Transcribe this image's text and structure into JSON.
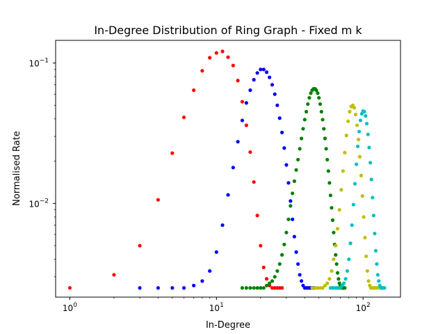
{
  "chart_data": {
    "type": "scatter",
    "title": "In-Degree Distribution of Ring Graph - Fixed m k",
    "xlabel": "In-Degree",
    "ylabel": "Normalised Rate",
    "xscale": "log",
    "yscale": "log",
    "xlim": [
      0.8,
      180
    ],
    "ylim": [
      0.00215,
      0.145
    ],
    "x_ticks": [
      {
        "base": "10",
        "exp": "0",
        "value": 1
      },
      {
        "base": "10",
        "exp": "1",
        "value": 10
      },
      {
        "base": "10",
        "exp": "2",
        "value": 100
      }
    ],
    "y_ticks": [
      {
        "base": "10",
        "exp": "−2",
        "value": 0.01
      },
      {
        "base": "10",
        "exp": "−1",
        "value": 0.1
      }
    ],
    "grid": false,
    "series": [
      {
        "color": "#ff0000",
        "points": [
          [
            1,
            0.0025
          ],
          [
            2,
            0.0031
          ],
          [
            3,
            0.005
          ],
          [
            4,
            0.0106
          ],
          [
            5,
            0.0228
          ],
          [
            6,
            0.041
          ],
          [
            7,
            0.064
          ],
          [
            8,
            0.088
          ],
          [
            9,
            0.109
          ],
          [
            10,
            0.118
          ],
          [
            11,
            0.121
          ],
          [
            12,
            0.11
          ],
          [
            13,
            0.096
          ],
          [
            14,
            0.075
          ],
          [
            15,
            0.053
          ],
          [
            16,
            0.036
          ],
          [
            17,
            0.0232
          ],
          [
            18,
            0.0142
          ],
          [
            19,
            0.0082
          ],
          [
            20,
            0.005
          ],
          [
            21,
            0.0035
          ],
          [
            22,
            0.0029
          ],
          [
            23,
            0.0026
          ],
          [
            24,
            0.0025
          ],
          [
            25,
            0.0025
          ],
          [
            26,
            0.0025
          ],
          [
            27,
            0.0025
          ],
          [
            28,
            0.0025
          ]
        ]
      },
      {
        "color": "#0000ff",
        "points": [
          [
            3,
            0.0025
          ],
          [
            4,
            0.0025
          ],
          [
            5,
            0.0025
          ],
          [
            6,
            0.0025
          ],
          [
            7,
            0.0026
          ],
          [
            8,
            0.0028
          ],
          [
            9,
            0.0033
          ],
          [
            10,
            0.0045
          ],
          [
            11,
            0.007
          ],
          [
            12,
            0.0115
          ],
          [
            13,
            0.018
          ],
          [
            14,
            0.0275
          ],
          [
            15,
            0.039
          ],
          [
            16,
            0.052
          ],
          [
            17,
            0.064
          ],
          [
            18,
            0.076
          ],
          [
            19,
            0.085
          ],
          [
            20,
            0.09
          ],
          [
            21,
            0.09
          ],
          [
            22,
            0.086
          ],
          [
            23,
            0.079
          ],
          [
            24,
            0.07
          ],
          [
            25,
            0.06
          ],
          [
            26,
            0.05
          ],
          [
            27,
            0.0405
          ],
          [
            28,
            0.032
          ],
          [
            29,
            0.0248
          ],
          [
            30,
            0.0188
          ],
          [
            31,
            0.014
          ],
          [
            32,
            0.0104
          ],
          [
            33,
            0.0077
          ],
          [
            34,
            0.0058
          ],
          [
            35,
            0.0045
          ],
          [
            36,
            0.0037
          ],
          [
            37,
            0.0031
          ],
          [
            38,
            0.0028
          ],
          [
            39,
            0.0026
          ],
          [
            40,
            0.0025
          ],
          [
            41,
            0.0025
          ],
          [
            42,
            0.0025
          ],
          [
            43,
            0.0025
          ],
          [
            44,
            0.0025
          ],
          [
            45,
            0.0025
          ],
          [
            46,
            0.0025
          ]
        ]
      },
      {
        "color": "#008000",
        "points": [
          [
            15,
            0.0025
          ],
          [
            16,
            0.0025
          ],
          [
            17,
            0.0025
          ],
          [
            18,
            0.0025
          ],
          [
            19,
            0.0025
          ],
          [
            20,
            0.0025
          ],
          [
            21,
            0.0025
          ],
          [
            22,
            0.0026
          ],
          [
            23,
            0.0027
          ],
          [
            24,
            0.0028
          ],
          [
            25,
            0.003
          ],
          [
            26,
            0.0033
          ],
          [
            27,
            0.0037
          ],
          [
            28,
            0.0043
          ],
          [
            29,
            0.0051
          ],
          [
            30,
            0.0062
          ],
          [
            31,
            0.0077
          ],
          [
            32,
            0.0096
          ],
          [
            33,
            0.0118
          ],
          [
            34,
            0.0144
          ],
          [
            35,
            0.0173
          ],
          [
            36,
            0.0205
          ],
          [
            37,
            0.0245
          ],
          [
            38,
            0.029
          ],
          [
            39,
            0.034
          ],
          [
            40,
            0.0395
          ],
          [
            41,
            0.045
          ],
          [
            42,
            0.051
          ],
          [
            43,
            0.0565
          ],
          [
            44,
            0.061
          ],
          [
            45,
            0.064
          ],
          [
            46,
            0.0655
          ],
          [
            47,
            0.0655
          ],
          [
            48,
            0.064
          ],
          [
            49,
            0.061
          ],
          [
            50,
            0.0565
          ],
          [
            51,
            0.051
          ],
          [
            52,
            0.045
          ],
          [
            53,
            0.0395
          ],
          [
            54,
            0.034
          ],
          [
            55,
            0.029
          ],
          [
            56,
            0.0245
          ],
          [
            57,
            0.0205
          ],
          [
            58,
            0.017
          ],
          [
            59,
            0.014
          ],
          [
            60,
            0.0114
          ],
          [
            61,
            0.0093
          ],
          [
            62,
            0.0076
          ],
          [
            63,
            0.0062
          ],
          [
            64,
            0.0051
          ],
          [
            65,
            0.0043
          ],
          [
            66,
            0.0037
          ],
          [
            67,
            0.0032
          ],
          [
            68,
            0.0029
          ],
          [
            69,
            0.0027
          ],
          [
            70,
            0.0026
          ],
          [
            71,
            0.0025
          ],
          [
            72,
            0.0025
          ],
          [
            73,
            0.0025
          ],
          [
            74,
            0.0025
          ],
          [
            75,
            0.0025
          ]
        ]
      },
      {
        "color": "#bfbf00",
        "points": [
          [
            45,
            0.0025
          ],
          [
            47,
            0.0025
          ],
          [
            49,
            0.0025
          ],
          [
            51,
            0.0025
          ],
          [
            53,
            0.0025
          ],
          [
            55,
            0.0026
          ],
          [
            57,
            0.0027
          ],
          [
            59,
            0.0029
          ],
          [
            61,
            0.0033
          ],
          [
            63,
            0.004
          ],
          [
            65,
            0.005
          ],
          [
            67,
            0.0066
          ],
          [
            69,
            0.009
          ],
          [
            71,
            0.0125
          ],
          [
            73,
            0.017
          ],
          [
            75,
            0.023
          ],
          [
            77,
            0.0305
          ],
          [
            79,
            0.0385
          ],
          [
            81,
            0.045
          ],
          [
            83,
            0.049
          ],
          [
            85,
            0.05
          ],
          [
            87,
            0.048
          ],
          [
            89,
            0.043
          ],
          [
            91,
            0.036
          ],
          [
            93,
            0.0285
          ],
          [
            95,
            0.0215
          ],
          [
            97,
            0.0158
          ],
          [
            99,
            0.0113
          ],
          [
            101,
            0.008
          ],
          [
            103,
            0.0057
          ],
          [
            105,
            0.0042
          ],
          [
            107,
            0.0033
          ],
          [
            109,
            0.0028
          ],
          [
            111,
            0.0026
          ],
          [
            113,
            0.0025
          ],
          [
            115,
            0.0025
          ],
          [
            117,
            0.0025
          ],
          [
            119,
            0.0025
          ],
          [
            121,
            0.0025
          ],
          [
            123,
            0.0025
          ],
          [
            125,
            0.0025
          ]
        ]
      },
      {
        "color": "#00bfbf",
        "points": [
          [
            60,
            0.0025
          ],
          [
            62,
            0.0025
          ],
          [
            64,
            0.0025
          ],
          [
            66,
            0.0025
          ],
          [
            68,
            0.0025
          ],
          [
            70,
            0.0025
          ],
          [
            72,
            0.0026
          ],
          [
            74,
            0.0027
          ],
          [
            76,
            0.0029
          ],
          [
            78,
            0.0033
          ],
          [
            80,
            0.004
          ],
          [
            82,
            0.0052
          ],
          [
            84,
            0.007
          ],
          [
            86,
            0.0098
          ],
          [
            88,
            0.0138
          ],
          [
            90,
            0.019
          ],
          [
            92,
            0.0255
          ],
          [
            94,
            0.0325
          ],
          [
            96,
            0.039
          ],
          [
            98,
            0.0435
          ],
          [
            100,
            0.0455
          ],
          [
            102,
            0.045
          ],
          [
            104,
            0.042
          ],
          [
            106,
            0.037
          ],
          [
            108,
            0.031
          ],
          [
            110,
            0.025
          ],
          [
            112,
            0.0195
          ],
          [
            114,
            0.0148
          ],
          [
            116,
            0.011
          ],
          [
            118,
            0.0082
          ],
          [
            120,
            0.0061
          ],
          [
            122,
            0.0046
          ],
          [
            124,
            0.0037
          ],
          [
            126,
            0.0031
          ],
          [
            128,
            0.0028
          ],
          [
            130,
            0.0026
          ],
          [
            132,
            0.0025
          ],
          [
            134,
            0.0025
          ],
          [
            136,
            0.0025
          ],
          [
            138,
            0.0025
          ],
          [
            140,
            0.0025
          ]
        ]
      }
    ]
  }
}
